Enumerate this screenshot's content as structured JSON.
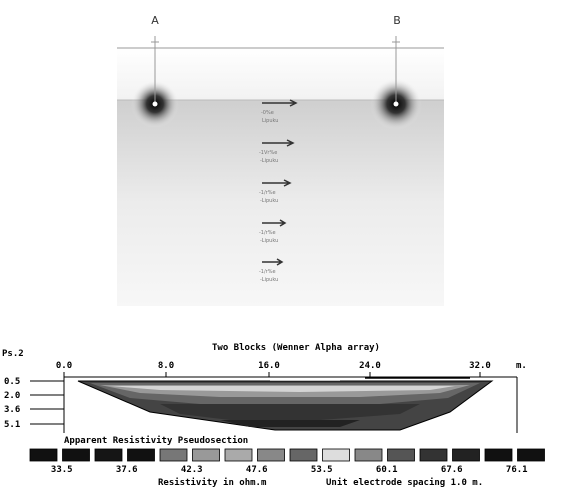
{
  "top_panel": {
    "electrode_a": "A",
    "electrode_b": "B",
    "probes": [
      {
        "line1": "-0%e",
        "line2": "Lipuku"
      },
      {
        "line1": "-1Vr%e",
        "line2": "-Lipuku"
      },
      {
        "line1": "-1/r%e",
        "line2": "-Lipuku"
      },
      {
        "line1": "-1/r%e",
        "line2": "-Lipuku"
      },
      {
        "line1": "-1/r%e",
        "line2": "-Lipuku"
      }
    ]
  },
  "bottom_panel": {
    "title": "Two Blocks (Wenner Alpha array)",
    "ps_label": "Ps.2",
    "x_ticks": [
      "0.0",
      "8.0",
      "16.0",
      "24.0",
      "32.0"
    ],
    "x_unit": "m.",
    "depth_ticks": [
      "0.5",
      "2.0",
      "3.6",
      "5.1"
    ],
    "section_label": "Apparent Resistivity Pseudosection",
    "legend_values": [
      "33.5",
      "37.6",
      "42.3",
      "47.6",
      "53.5",
      "60.1",
      "67.6",
      "76.1"
    ],
    "legend_colors": [
      "#111111",
      "#111111",
      "#151515",
      "#111111",
      "#777777",
      "#999999",
      "#aaaaaa",
      "#888888",
      "#666666",
      "#dddddd",
      "#888888",
      "#555555",
      "#333333",
      "#222222",
      "#111111",
      "#111111"
    ],
    "footer_left": "Resistivity in ohm.m",
    "footer_right": "Unit electrode spacing 1.0 m."
  }
}
